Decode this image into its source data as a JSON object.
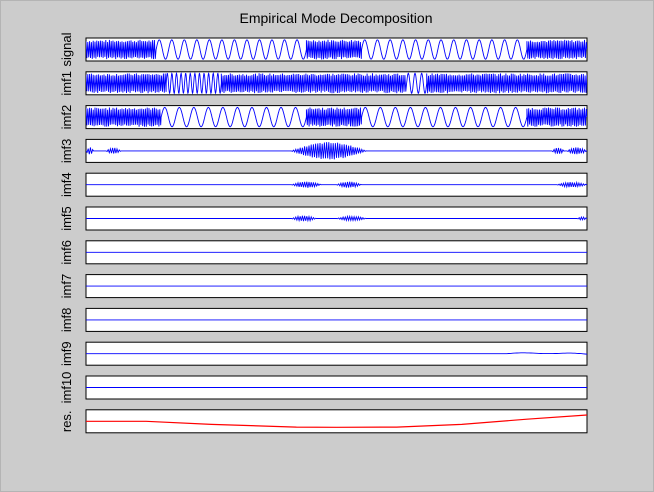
{
  "chart_data": {
    "type": "line",
    "title": "Empirical Mode Decomposition",
    "xlim": [
      0,
      1
    ],
    "grid": false,
    "legend": "none",
    "panels": [
      {
        "label": "signal",
        "color": "#0000ff",
        "segments": [
          {
            "x0": 0.0,
            "x1": 0.14,
            "type": "hf",
            "amp": 0.92
          },
          {
            "x0": 0.14,
            "x1": 0.44,
            "type": "lf",
            "amp": 0.92,
            "cycles": 12
          },
          {
            "x0": 0.44,
            "x1": 0.55,
            "type": "hf",
            "amp": 0.95
          },
          {
            "x0": 0.55,
            "x1": 0.88,
            "type": "lf",
            "amp": 0.92,
            "cycles": 13
          },
          {
            "x0": 0.88,
            "x1": 1.0,
            "type": "hf",
            "amp": 0.92
          }
        ]
      },
      {
        "label": "imf1",
        "color": "#0000ff",
        "segments": [
          {
            "x0": 0.0,
            "x1": 0.16,
            "type": "hf",
            "amp": 0.95
          },
          {
            "x0": 0.16,
            "x1": 0.27,
            "type": "lf",
            "amp": 0.95,
            "cycles": 12
          },
          {
            "x0": 0.27,
            "x1": 0.64,
            "type": "hf",
            "amp": 0.95
          },
          {
            "x0": 0.64,
            "x1": 0.68,
            "type": "lf",
            "amp": 0.95,
            "cycles": 3
          },
          {
            "x0": 0.68,
            "x1": 1.0,
            "type": "hf",
            "amp": 0.95
          }
        ]
      },
      {
        "label": "imf2",
        "color": "#0000ff",
        "segments": [
          {
            "x0": 0.0,
            "x1": 0.15,
            "type": "hf",
            "amp": 0.92
          },
          {
            "x0": 0.15,
            "x1": 0.44,
            "type": "lf",
            "amp": 0.92,
            "cycles": 10
          },
          {
            "x0": 0.44,
            "x1": 0.55,
            "type": "hf",
            "amp": 0.92
          },
          {
            "x0": 0.55,
            "x1": 0.88,
            "type": "lf",
            "amp": 0.92,
            "cycles": 11
          },
          {
            "x0": 0.88,
            "x1": 1.0,
            "type": "hf",
            "amp": 0.92
          }
        ]
      },
      {
        "label": "imf3",
        "color": "#0000ff",
        "segments": [
          {
            "x0": 0.0,
            "x1": 0.015,
            "type": "burst",
            "amp": 0.35
          },
          {
            "x0": 0.04,
            "x1": 0.07,
            "type": "burst",
            "amp": 0.3
          },
          {
            "x0": 0.41,
            "x1": 0.56,
            "type": "burst",
            "amp": 0.85
          },
          {
            "x0": 0.93,
            "x1": 0.955,
            "type": "burst",
            "amp": 0.3
          },
          {
            "x0": 0.96,
            "x1": 1.0,
            "type": "burst",
            "amp": 0.35
          }
        ]
      },
      {
        "label": "imf4",
        "color": "#0000ff",
        "segments": [
          {
            "x0": 0.41,
            "x1": 0.47,
            "type": "burst",
            "amp": 0.3
          },
          {
            "x0": 0.5,
            "x1": 0.55,
            "type": "burst",
            "amp": 0.3
          },
          {
            "x0": 0.94,
            "x1": 1.0,
            "type": "burst",
            "amp": 0.25
          }
        ]
      },
      {
        "label": "imf5",
        "color": "#0000ff",
        "segments": [
          {
            "x0": 0.41,
            "x1": 0.46,
            "type": "burst",
            "amp": 0.28
          },
          {
            "x0": 0.5,
            "x1": 0.56,
            "type": "burst",
            "amp": 0.22
          },
          {
            "x0": 0.98,
            "x1": 1.0,
            "type": "burst",
            "amp": 0.15
          }
        ]
      },
      {
        "label": "imf6",
        "color": "#0000ff",
        "segments": []
      },
      {
        "label": "imf7",
        "color": "#0000ff",
        "segments": []
      },
      {
        "label": "imf8",
        "color": "#0000ff",
        "segments": []
      },
      {
        "label": "imf9",
        "color": "#0000ff",
        "segments": [
          {
            "x0": 0.84,
            "x1": 1.0,
            "type": "drift"
          }
        ]
      },
      {
        "label": "imf10",
        "color": "#0000ff",
        "segments": []
      },
      {
        "label": "res.",
        "color": "#ff0000",
        "points": [
          [
            0.0,
            0.0
          ],
          [
            0.12,
            0.0
          ],
          [
            0.25,
            -0.3
          ],
          [
            0.42,
            -0.55
          ],
          [
            0.5,
            -0.57
          ],
          [
            0.62,
            -0.55
          ],
          [
            0.75,
            -0.3
          ],
          [
            0.88,
            0.2
          ],
          [
            1.0,
            0.6
          ]
        ]
      }
    ]
  }
}
